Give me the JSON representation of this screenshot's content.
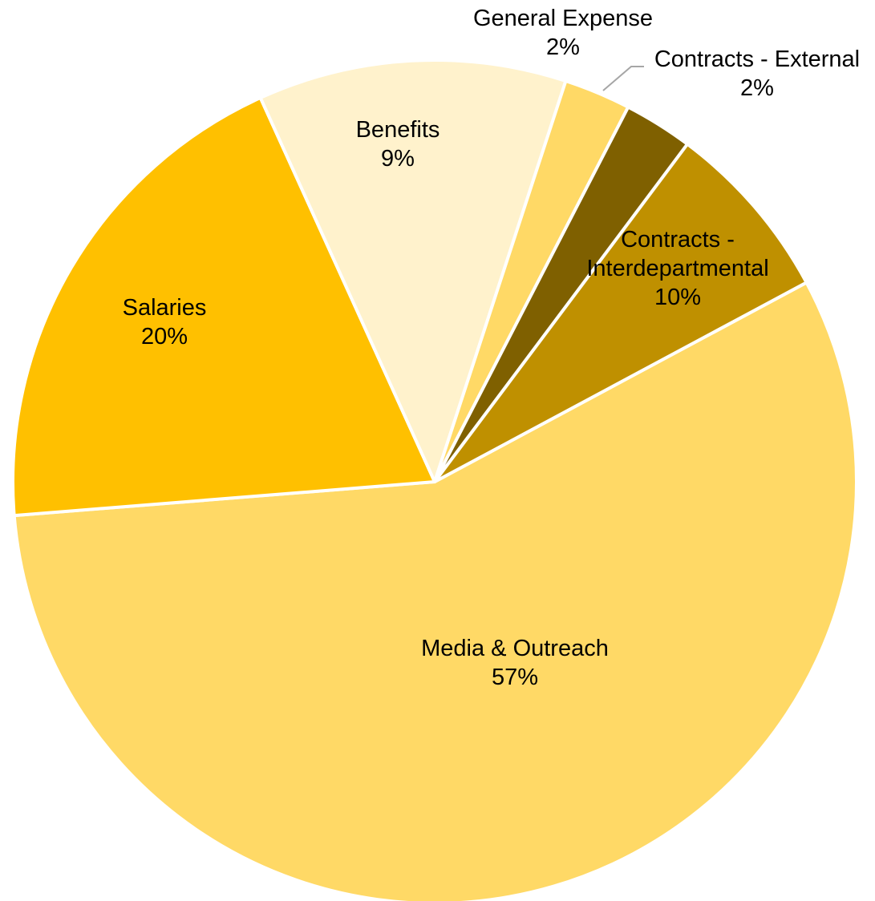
{
  "chart_data": {
    "type": "pie",
    "title": "",
    "slices": [
      {
        "name": "Media & Outreach",
        "percent_label": "57%",
        "value": 57,
        "color": "#FFD966"
      },
      {
        "name": "Salaries",
        "percent_label": "20%",
        "value": 20,
        "color": "#FFC000"
      },
      {
        "name": "Benefits",
        "percent_label": "9%",
        "value": 9,
        "color": "#FFF2CC"
      },
      {
        "name": "General Expense",
        "percent_label": "2%",
        "value": 2,
        "color": "#FFD966"
      },
      {
        "name": "Contracts - External",
        "percent_label": "2%",
        "value": 2,
        "color": "#7F6000"
      },
      {
        "name": "Contracts - Interdepartmental",
        "percent_label": "10%",
        "value": 10,
        "color": "#BF9000"
      }
    ]
  }
}
